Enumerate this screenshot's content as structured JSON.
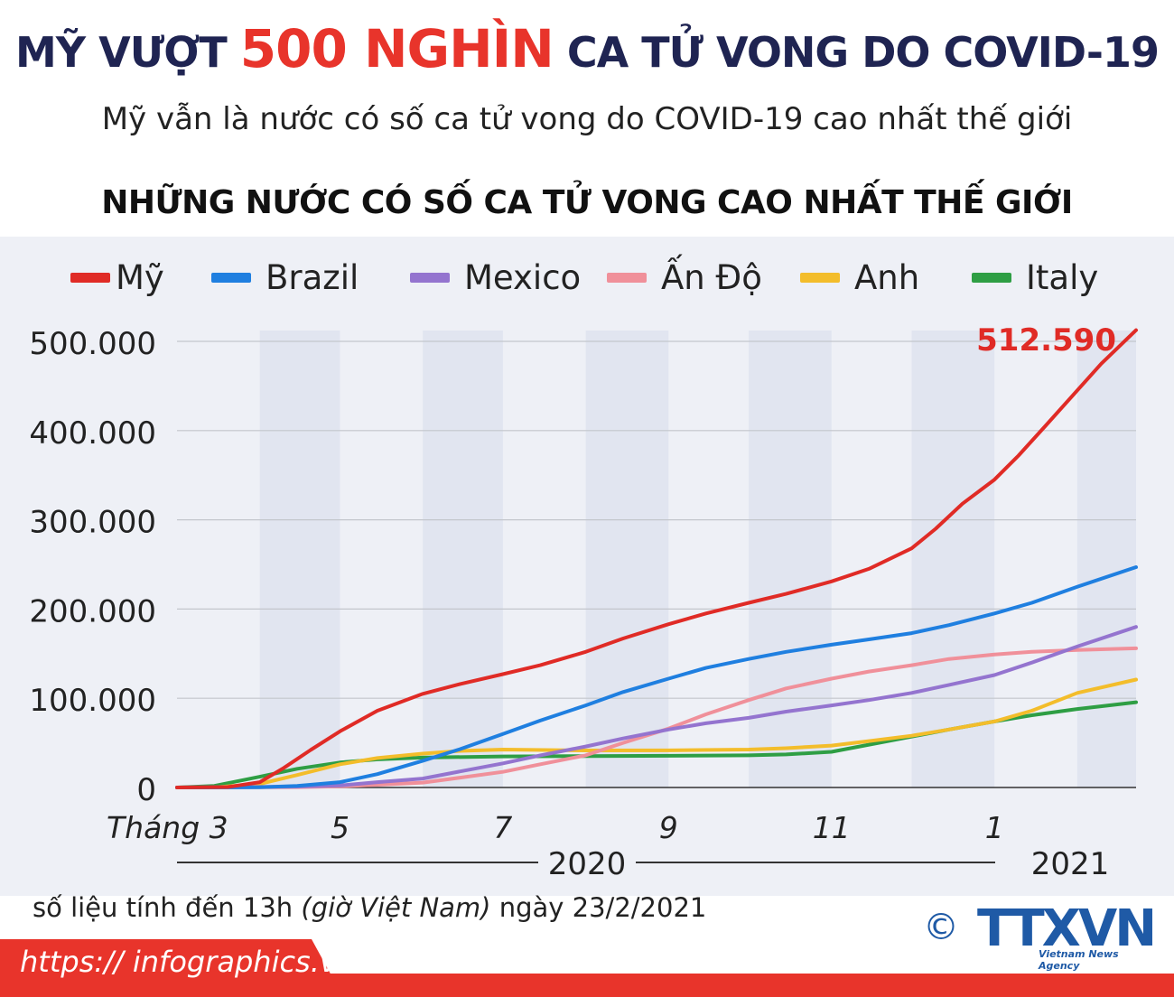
{
  "header": {
    "headline_pre": "MỸ VƯỢT",
    "headline_accent": "500 NGHÌN",
    "headline_post": "CA TỬ VONG DO COVID-19",
    "subtitle": "Mỹ vẫn là nước có số ca tử vong do COVID-19 cao nhất thế giới",
    "section_title": "NHỮNG NƯỚC CÓ SỐ CA TỬ VONG CAO NHẤT THẾ GIỚI"
  },
  "chart_data": {
    "type": "line",
    "title": "NHỮNG NƯỚC CÓ SỐ CA TỬ VONG CAO NHẤT THẾ GIỚI",
    "x_unit": "month",
    "x_tick_labels": [
      "Tháng 3",
      "5",
      "7",
      "9",
      "11",
      "1"
    ],
    "x_tick_months": [
      "2020-03",
      "2020-05",
      "2020-07",
      "2020-09",
      "2020-11",
      "2021-01"
    ],
    "year_labels": [
      "2020",
      "2021"
    ],
    "x_range": [
      "2020-03-01",
      "2021-02-23"
    ],
    "ylim": [
      0,
      500000
    ],
    "y_tick_labels": [
      "0",
      "100.000",
      "200.000",
      "300.000",
      "400.000",
      "500.000"
    ],
    "y_ticks": [
      0,
      100000,
      200000,
      300000,
      400000,
      500000
    ],
    "grid": true,
    "legend_position": "top",
    "shaded_month_bands": true,
    "annotation": {
      "series": "Mỹ",
      "label": "512.590",
      "value": 512590
    },
    "series": [
      {
        "name": "Mỹ",
        "color": "#e02b26",
        "points": [
          [
            "2020-03-01",
            0
          ],
          [
            "2020-03-20",
            500
          ],
          [
            "2020-04-01",
            6000
          ],
          [
            "2020-04-10",
            22000
          ],
          [
            "2020-04-20",
            42000
          ],
          [
            "2020-05-01",
            63000
          ],
          [
            "2020-05-15",
            86000
          ],
          [
            "2020-06-01",
            105000
          ],
          [
            "2020-06-15",
            116000
          ],
          [
            "2020-07-01",
            127000
          ],
          [
            "2020-07-15",
            137000
          ],
          [
            "2020-08-01",
            152000
          ],
          [
            "2020-08-15",
            167000
          ],
          [
            "2020-09-01",
            183000
          ],
          [
            "2020-09-15",
            195000
          ],
          [
            "2020-10-01",
            207000
          ],
          [
            "2020-10-15",
            217000
          ],
          [
            "2020-11-01",
            231000
          ],
          [
            "2020-11-15",
            245000
          ],
          [
            "2020-12-01",
            268000
          ],
          [
            "2020-12-10",
            290000
          ],
          [
            "2020-12-20",
            318000
          ],
          [
            "2021-01-01",
            345000
          ],
          [
            "2021-01-10",
            372000
          ],
          [
            "2021-01-20",
            405000
          ],
          [
            "2021-02-01",
            445000
          ],
          [
            "2021-02-10",
            475000
          ],
          [
            "2021-02-23",
            512590
          ]
        ]
      },
      {
        "name": "Brazil",
        "color": "#1f7fe0",
        "points": [
          [
            "2020-03-01",
            0
          ],
          [
            "2020-04-01",
            200
          ],
          [
            "2020-04-15",
            1800
          ],
          [
            "2020-05-01",
            6000
          ],
          [
            "2020-05-15",
            15000
          ],
          [
            "2020-06-01",
            30000
          ],
          [
            "2020-06-15",
            43000
          ],
          [
            "2020-07-01",
            60000
          ],
          [
            "2020-07-15",
            75000
          ],
          [
            "2020-08-01",
            92000
          ],
          [
            "2020-08-15",
            107000
          ],
          [
            "2020-09-01",
            122000
          ],
          [
            "2020-09-15",
            134000
          ],
          [
            "2020-10-01",
            144000
          ],
          [
            "2020-10-15",
            152000
          ],
          [
            "2020-11-01",
            160000
          ],
          [
            "2020-11-15",
            166000
          ],
          [
            "2020-12-01",
            173000
          ],
          [
            "2020-12-15",
            182000
          ],
          [
            "2021-01-01",
            195000
          ],
          [
            "2021-01-15",
            207000
          ],
          [
            "2021-02-01",
            225000
          ],
          [
            "2021-02-23",
            247000
          ]
        ]
      },
      {
        "name": "Mexico",
        "color": "#9474cf",
        "points": [
          [
            "2020-03-01",
            0
          ],
          [
            "2020-04-15",
            1000
          ],
          [
            "2020-05-01",
            2200
          ],
          [
            "2020-05-15",
            6000
          ],
          [
            "2020-06-01",
            10000
          ],
          [
            "2020-06-15",
            18000
          ],
          [
            "2020-07-01",
            27000
          ],
          [
            "2020-07-15",
            36000
          ],
          [
            "2020-08-01",
            46000
          ],
          [
            "2020-08-15",
            55000
          ],
          [
            "2020-09-01",
            65000
          ],
          [
            "2020-09-15",
            72000
          ],
          [
            "2020-10-01",
            78000
          ],
          [
            "2020-10-15",
            85000
          ],
          [
            "2020-11-01",
            92000
          ],
          [
            "2020-11-15",
            98000
          ],
          [
            "2020-12-01",
            106000
          ],
          [
            "2020-12-15",
            115000
          ],
          [
            "2021-01-01",
            126000
          ],
          [
            "2021-01-15",
            140000
          ],
          [
            "2021-02-01",
            158000
          ],
          [
            "2021-02-23",
            180000
          ]
        ]
      },
      {
        "name": "Ấn Độ",
        "color": "#f0909a",
        "points": [
          [
            "2020-03-01",
            0
          ],
          [
            "2020-04-15",
            400
          ],
          [
            "2020-05-01",
            1200
          ],
          [
            "2020-05-15",
            3000
          ],
          [
            "2020-06-01",
            5500
          ],
          [
            "2020-06-15",
            11000
          ],
          [
            "2020-07-01",
            17500
          ],
          [
            "2020-07-15",
            26000
          ],
          [
            "2020-08-01",
            36000
          ],
          [
            "2020-08-15",
            50000
          ],
          [
            "2020-09-01",
            66000
          ],
          [
            "2020-09-15",
            82000
          ],
          [
            "2020-10-01",
            98000
          ],
          [
            "2020-10-15",
            111000
          ],
          [
            "2020-11-01",
            122000
          ],
          [
            "2020-11-15",
            130000
          ],
          [
            "2020-12-01",
            137000
          ],
          [
            "2020-12-15",
            144000
          ],
          [
            "2021-01-01",
            149000
          ],
          [
            "2021-01-15",
            152000
          ],
          [
            "2021-02-01",
            154000
          ],
          [
            "2021-02-23",
            156000
          ]
        ]
      },
      {
        "name": "Anh",
        "color": "#f3bd2b",
        "points": [
          [
            "2020-03-01",
            0
          ],
          [
            "2020-03-15",
            100
          ],
          [
            "2020-04-01",
            4000
          ],
          [
            "2020-04-15",
            14000
          ],
          [
            "2020-05-01",
            26000
          ],
          [
            "2020-05-15",
            33000
          ],
          [
            "2020-06-01",
            38000
          ],
          [
            "2020-06-15",
            41000
          ],
          [
            "2020-07-01",
            42500
          ],
          [
            "2020-08-01",
            41500
          ],
          [
            "2020-09-01",
            41600
          ],
          [
            "2020-10-01",
            42500
          ],
          [
            "2020-10-15",
            44000
          ],
          [
            "2020-11-01",
            47000
          ],
          [
            "2020-11-15",
            52000
          ],
          [
            "2020-12-01",
            58000
          ],
          [
            "2020-12-15",
            65000
          ],
          [
            "2021-01-01",
            74000
          ],
          [
            "2021-01-15",
            86000
          ],
          [
            "2021-02-01",
            106000
          ],
          [
            "2021-02-23",
            121000
          ]
        ]
      },
      {
        "name": "Italy",
        "color": "#2e9e44",
        "points": [
          [
            "2020-03-01",
            0
          ],
          [
            "2020-03-15",
            1800
          ],
          [
            "2020-04-01",
            12000
          ],
          [
            "2020-04-15",
            21000
          ],
          [
            "2020-05-01",
            28000
          ],
          [
            "2020-05-15",
            31500
          ],
          [
            "2020-06-01",
            33500
          ],
          [
            "2020-07-01",
            34800
          ],
          [
            "2020-08-01",
            35200
          ],
          [
            "2020-09-01",
            35500
          ],
          [
            "2020-10-01",
            36000
          ],
          [
            "2020-10-15",
            37000
          ],
          [
            "2020-11-01",
            40000
          ],
          [
            "2020-11-15",
            48000
          ],
          [
            "2020-12-01",
            57000
          ],
          [
            "2020-12-15",
            65000
          ],
          [
            "2021-01-01",
            74000
          ],
          [
            "2021-01-15",
            81000
          ],
          [
            "2021-02-01",
            88000
          ],
          [
            "2021-02-23",
            95500
          ]
        ]
      }
    ]
  },
  "footer": {
    "note_pre": "số liệu tính đến 13h",
    "note_italic": "(giờ Việt Nam)",
    "note_post": "ngày 23/2/2021",
    "url": "https:// infographics.vn",
    "logo_copyright": "©",
    "logo_brand": "TTXVN",
    "logo_tagline": "Vietnam News Agency",
    "brand_red": "#e8342b",
    "brand_blue": "#1f5aa6"
  }
}
